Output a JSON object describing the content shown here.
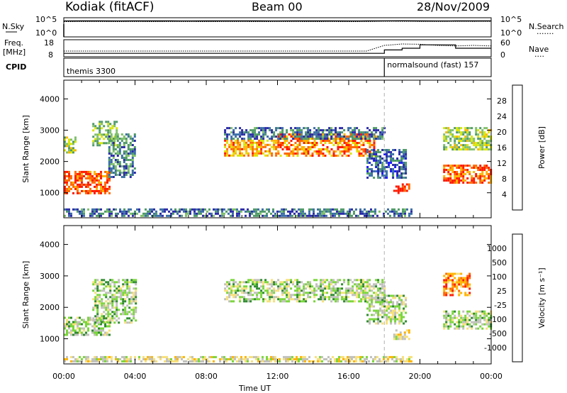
{
  "header": {
    "station": "Kodiak (fitACF)",
    "beam": "Beam 00",
    "date": "28/Nov/2009"
  },
  "side_labels": {
    "nsky": "N.Sky",
    "nsearch": "N.Search",
    "freq": "Freq.",
    "freq_unit": "[MHz]",
    "nave": "Nave",
    "cpid": "CPID"
  },
  "top_axis_ticks": {
    "nsky": [
      "10^5",
      "10^0"
    ],
    "nsearch": [
      "10^5",
      "10^0"
    ],
    "freq": [
      "18",
      "8"
    ],
    "nave": [
      "60",
      "0"
    ]
  },
  "cpid_segments": [
    {
      "label": "themis 3300",
      "start_h": 0,
      "end_h": 18
    },
    {
      "label": "normalsound (fast) 157",
      "start_h": 18,
      "end_h": 24
    }
  ],
  "colors": {
    "power_scale": [
      "#1a1aff",
      "#2b2ba8",
      "#3b6ea6",
      "#4f9a68",
      "#7fc06a",
      "#d9e600",
      "#ffb400",
      "#ff6a00",
      "#ff1a00"
    ],
    "velocity_scale": [
      "#1a1aff",
      "#1b6e4e",
      "#2e8b2e",
      "#7ad63a",
      "#c0c0bb",
      "#f7e07a",
      "#ffb400",
      "#ff6a00",
      "#ff1a00"
    ],
    "grid_dash": "#b0b0b0"
  },
  "chart_data": [
    {
      "type": "line",
      "title": "N.Sky / N.Search",
      "x": [
        0,
        1,
        2,
        3,
        4,
        5,
        6,
        7,
        8,
        9,
        10,
        11,
        12,
        13,
        14,
        15,
        16,
        17,
        18,
        19,
        20,
        21,
        22,
        23,
        24
      ],
      "series": [
        {
          "name": "N.Sky",
          "values": [
            30000,
            32000,
            31000,
            30500,
            31500,
            32000,
            31000,
            30000,
            31000,
            32000,
            31500,
            31000,
            30500,
            31000,
            32000,
            31000,
            30500,
            31000,
            33000,
            34000,
            32000,
            30000,
            31000,
            32000,
            32000
          ]
        },
        {
          "name": "N.Search",
          "values": [
            20000,
            21000,
            20500,
            20000,
            21000,
            20000,
            21000,
            20500,
            20000,
            21000,
            20500,
            20000,
            21000,
            20500,
            20000,
            21000,
            20000,
            20500,
            25000,
            24000,
            23000,
            22000,
            24000,
            23000,
            24000
          ]
        }
      ],
      "ylim": [
        1,
        100000
      ],
      "yscale": "log"
    },
    {
      "type": "line",
      "title": "Freq. / Nave",
      "x": [
        0,
        1,
        2,
        3,
        4,
        5,
        6,
        7,
        8,
        9,
        10,
        11,
        12,
        13,
        14,
        15,
        16,
        17,
        18,
        19,
        20,
        21,
        22,
        23,
        24
      ],
      "series": [
        {
          "name": "Freq. [MHz]",
          "values": [
            10,
            10,
            10,
            10,
            10,
            10,
            10,
            10,
            10,
            10,
            10,
            10,
            10,
            10,
            10,
            10,
            10,
            10,
            12,
            13,
            15,
            15,
            13,
            13,
            13
          ]
        },
        {
          "name": "Nave",
          "values": [
            20,
            20,
            20,
            20,
            20,
            20,
            20,
            20,
            20,
            20,
            20,
            20,
            20,
            20,
            20,
            20,
            20,
            20,
            40,
            45,
            44,
            40,
            38,
            40,
            38
          ]
        }
      ]
    },
    {
      "type": "heatmap",
      "ylabel": "Slant Range [km]",
      "colorbar_label": "Power [dB]",
      "colorbar_ticks": [
        4,
        8,
        12,
        16,
        20,
        24,
        28
      ],
      "xlim": [
        0,
        24
      ],
      "ylim": [
        200,
        4600
      ],
      "yticks": [
        1000,
        2000,
        3000,
        4000
      ],
      "bands": [
        {
          "t0": 0.0,
          "t1": 2.6,
          "r0": 1000,
          "r1": 1700,
          "level": 0.9
        },
        {
          "t0": 0.0,
          "t1": 0.6,
          "r0": 2300,
          "r1": 2800,
          "level": 0.55
        },
        {
          "t0": 1.6,
          "t1": 3.0,
          "r0": 2500,
          "r1": 3300,
          "level": 0.5
        },
        {
          "t0": 2.5,
          "t1": 4.0,
          "r0": 1500,
          "r1": 2900,
          "level": 0.35
        },
        {
          "t0": 9.0,
          "t1": 12.0,
          "r0": 2200,
          "r1": 2700,
          "level": 0.75
        },
        {
          "t0": 12.0,
          "t1": 17.5,
          "r0": 2200,
          "r1": 2900,
          "level": 0.8
        },
        {
          "t0": 9.0,
          "t1": 18.0,
          "r0": 2700,
          "r1": 3100,
          "level": 0.3
        },
        {
          "t0": 17.0,
          "t1": 19.2,
          "r0": 1500,
          "r1": 2400,
          "level": 0.25
        },
        {
          "t0": 18.5,
          "t1": 19.4,
          "r0": 1000,
          "r1": 1300,
          "level": 0.95
        },
        {
          "t0": 21.3,
          "t1": 24.0,
          "r0": 1300,
          "r1": 1900,
          "level": 0.85
        },
        {
          "t0": 21.3,
          "t1": 24.0,
          "r0": 2400,
          "r1": 3100,
          "level": 0.55
        },
        {
          "t0": 0.0,
          "t1": 19.5,
          "r0": 250,
          "r1": 500,
          "level": 0.3
        }
      ]
    },
    {
      "type": "heatmap",
      "ylabel": "Slant Range [km]",
      "colorbar_label": "Velocity [m s⁻¹]",
      "colorbar_ticks": [
        1000,
        500,
        100,
        25,
        -25,
        -100,
        -500,
        -1000
      ],
      "xlim": [
        0,
        24
      ],
      "ylim": [
        200,
        4600
      ],
      "yticks": [
        1000,
        2000,
        3000,
        4000
      ],
      "xticks": [
        "00:00",
        "04:00",
        "08:00",
        "12:00",
        "16:00",
        "20:00",
        "00:00"
      ],
      "xlabel": "Time UT",
      "bands": [
        {
          "t0": 0.0,
          "t1": 2.6,
          "r0": 1100,
          "r1": 1700,
          "level": 0.45
        },
        {
          "t0": 1.6,
          "t1": 4.0,
          "r0": 1500,
          "r1": 2900,
          "level": 0.45
        },
        {
          "t0": 9.0,
          "t1": 18.0,
          "r0": 2200,
          "r1": 2900,
          "level": 0.45
        },
        {
          "t0": 17.0,
          "t1": 19.2,
          "r0": 1500,
          "r1": 2400,
          "level": 0.45
        },
        {
          "t0": 18.5,
          "t1": 19.4,
          "r0": 1000,
          "r1": 1300,
          "level": 0.6
        },
        {
          "t0": 21.3,
          "t1": 24.0,
          "r0": 1300,
          "r1": 1900,
          "level": 0.45
        },
        {
          "t0": 21.3,
          "t1": 22.8,
          "r0": 2400,
          "r1": 3100,
          "level": 0.8
        },
        {
          "t0": 0.0,
          "t1": 19.5,
          "r0": 250,
          "r1": 450,
          "level": 0.55
        }
      ]
    }
  ]
}
